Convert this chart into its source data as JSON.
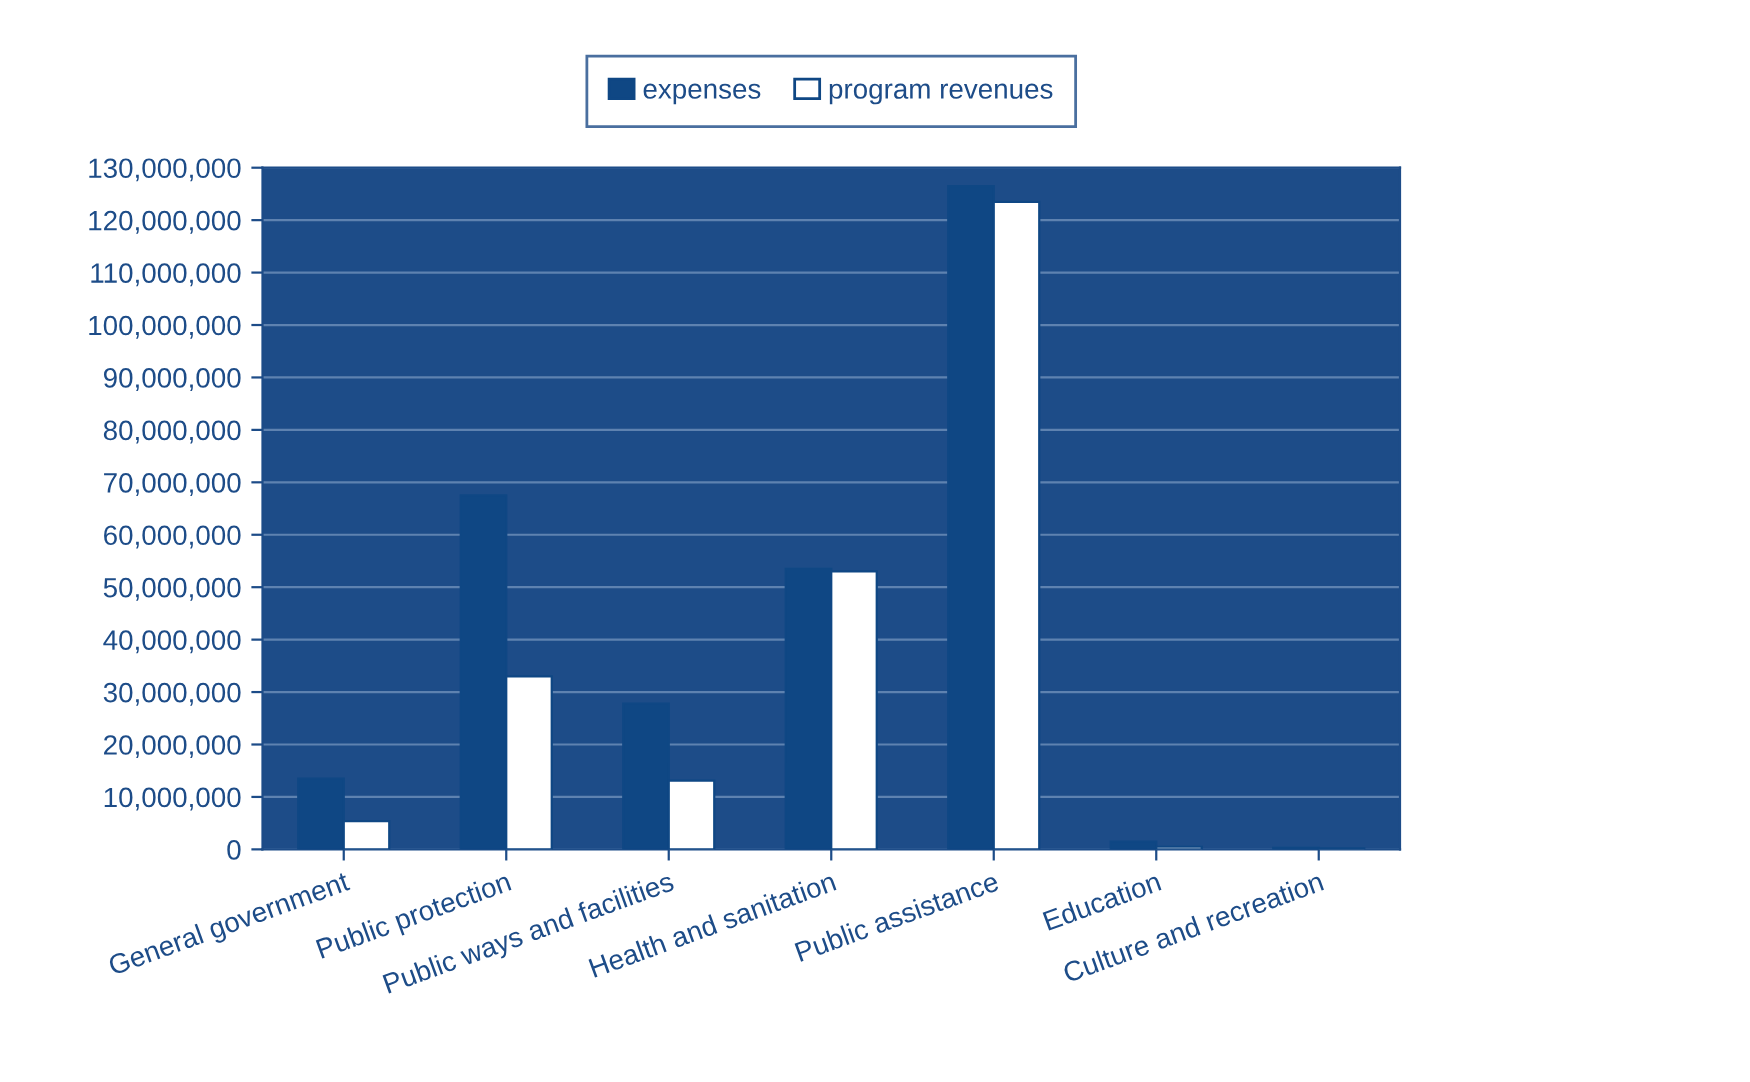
{
  "chart_data": {
    "type": "bar",
    "categories": [
      "General government",
      "Public protection",
      "Public ways and facilities",
      "Health and sanitation",
      "Public assistance",
      "Education",
      "Culture and recreation"
    ],
    "series": [
      {
        "name": "expenses",
        "color": "#0f4784",
        "values": [
          13500000,
          67500000,
          27800000,
          53500000,
          126500000,
          1500000,
          300000
        ]
      },
      {
        "name": "program revenues",
        "color": "#ffffff",
        "values": [
          5400000,
          33000000,
          13100000,
          53000000,
          123500000,
          500000,
          200000
        ]
      }
    ],
    "ylim": [
      0,
      130000000
    ],
    "yticks": [
      {
        "value": 0,
        "label": "0"
      },
      {
        "value": 10000000,
        "label": "10,000,000"
      },
      {
        "value": 20000000,
        "label": "20,000,000"
      },
      {
        "value": 30000000,
        "label": "30,000,000"
      },
      {
        "value": 40000000,
        "label": "40,000,000"
      },
      {
        "value": 50000000,
        "label": "50,000,000"
      },
      {
        "value": 60000000,
        "label": "60,000,000"
      },
      {
        "value": 70000000,
        "label": "70,000,000"
      },
      {
        "value": 80000000,
        "label": "80,000,000"
      },
      {
        "value": 90000000,
        "label": "90,000,000"
      },
      {
        "value": 100000000,
        "label": "100,000,000"
      },
      {
        "value": 110000000,
        "label": "110,000,000"
      },
      {
        "value": 120000000,
        "label": "120,000,000"
      },
      {
        "value": 130000000,
        "label": "130,000,000"
      }
    ],
    "grid": "y",
    "legend": "top"
  }
}
